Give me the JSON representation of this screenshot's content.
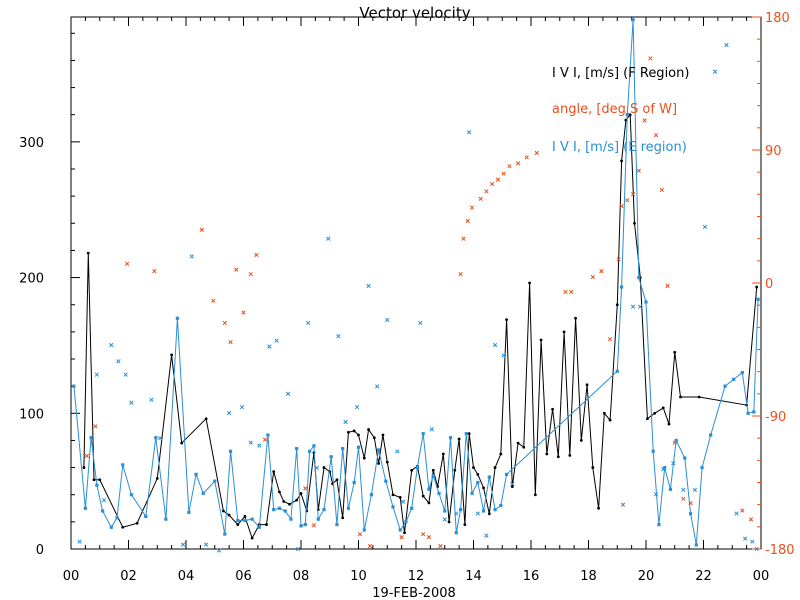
{
  "chart_data": {
    "type": "line",
    "title": "Vector velocity",
    "xlabel": "19-FEB-2008",
    "x_unit": "hours UT",
    "xlim": [
      0,
      24
    ],
    "x_ticks": [
      "00",
      "02",
      "04",
      "06",
      "08",
      "10",
      "12",
      "14",
      "16",
      "18",
      "20",
      "22",
      "00"
    ],
    "x_tick_values": [
      0,
      2,
      4,
      6,
      8,
      10,
      12,
      14,
      16,
      18,
      20,
      22,
      24
    ],
    "ylim": [
      0,
      392
    ],
    "y_ticks": [
      "0",
      "100",
      "200",
      "300"
    ],
    "y_tick_values": [
      0,
      100,
      200,
      300
    ],
    "y2lim": [
      -180,
      180
    ],
    "y2_ticks": [
      "-180",
      "-90",
      "0",
      "90",
      "180"
    ],
    "y2_tick_values": [
      -180,
      -90,
      0,
      90,
      180
    ],
    "colors": {
      "axis": "#000000",
      "f_region": "#000000",
      "angle": "#e8501e",
      "e_region": "#2a8fd6"
    },
    "legend": [
      {
        "label": "I V I, [m/s] (F Region)",
        "color": "#000000"
      },
      {
        "label": "angle, [deg S of W]",
        "color": "#e8501e"
      },
      {
        "label": "I V I, [m/s] (E region)",
        "color": "#2a8fd6"
      }
    ],
    "series": [
      {
        "name": "I V I, [m/s] (F Region)",
        "axis": "left",
        "style": "line-with-dots",
        "x": [
          0.45,
          0.6,
          0.8,
          1.0,
          1.8,
          2.3,
          3.0,
          3.5,
          3.85,
          4.7,
          5.3,
          5.5,
          5.8,
          6.05,
          6.3,
          6.55,
          6.8,
          7.05,
          7.25,
          7.4,
          7.6,
          7.85,
          8.0,
          8.2,
          8.45,
          8.6,
          8.8,
          9.0,
          9.1,
          9.25,
          9.45,
          9.65,
          9.85,
          10.0,
          10.2,
          10.35,
          10.55,
          10.7,
          10.85,
          11.0,
          11.2,
          11.45,
          11.6,
          11.85,
          12.05,
          12.25,
          12.45,
          12.6,
          12.75,
          12.95,
          13.15,
          13.35,
          13.5,
          13.7,
          13.85,
          14.0,
          14.15,
          14.35,
          14.55,
          14.75,
          14.95,
          15.15,
          15.35,
          15.55,
          15.75,
          15.95,
          16.15,
          16.35,
          16.55,
          16.75,
          16.95,
          17.15,
          17.35,
          17.55,
          17.75,
          17.95,
          18.15,
          18.35,
          18.55,
          18.75,
          19.0,
          19.15,
          19.3,
          19.45,
          19.6,
          19.8,
          20.05,
          20.3,
          20.6,
          20.8,
          21.0,
          21.2,
          21.85,
          23.5,
          23.85
        ],
        "values": [
          60,
          218,
          51,
          51,
          16,
          19,
          52,
          143,
          78,
          96,
          28,
          25,
          18,
          24,
          8,
          18,
          18,
          57,
          42,
          35,
          33,
          36,
          41,
          28,
          71,
          29,
          60,
          57,
          48,
          51,
          23,
          86,
          87,
          84,
          67,
          88,
          82,
          63,
          84,
          64,
          40,
          38,
          12,
          58,
          61,
          39,
          34,
          58,
          46,
          70,
          20,
          58,
          81,
          18,
          85,
          60,
          55,
          45,
          26,
          60,
          70,
          169,
          46,
          78,
          75,
          196,
          40,
          154,
          70,
          103,
          68,
          160,
          69,
          170,
          80,
          121,
          60,
          30,
          100,
          95,
          180,
          286,
          316,
          320,
          240,
          200,
          96,
          100,
          104,
          92,
          145,
          112,
          112,
          106,
          193
        ]
      },
      {
        "name": "angle, [deg S of W]",
        "axis": "right",
        "style": "markers-x",
        "x": [
          0.55,
          0.85,
          1.95,
          2.9,
          4.55,
          4.95,
          5.35,
          5.55,
          5.75,
          6.0,
          6.25,
          6.45,
          6.75,
          8.15,
          8.45,
          10.05,
          10.4,
          11.5,
          12.25,
          12.45,
          12.85,
          13.55,
          13.65,
          13.8,
          13.95,
          14.25,
          14.45,
          14.65,
          14.85,
          15.05,
          15.25,
          15.55,
          15.85,
          16.2,
          17.2,
          17.4,
          18.15,
          18.45,
          18.75,
          19.05,
          19.15,
          19.35,
          19.55,
          19.75,
          19.95,
          20.15,
          20.35,
          20.55,
          20.75,
          21.0,
          21.3,
          21.55,
          23.35,
          23.65
        ],
        "values": [
          -117,
          -97,
          13,
          8,
          36,
          -12,
          -27,
          -40,
          9,
          -20,
          6,
          19,
          -106,
          -139,
          -164,
          -170,
          -178,
          -172,
          -170,
          -172,
          -178,
          6,
          30,
          42,
          51,
          57,
          62,
          67,
          70,
          74,
          79,
          81,
          85,
          88,
          -6,
          -6,
          4,
          8,
          -38,
          16,
          52,
          56,
          60,
          76,
          110,
          152,
          100,
          63,
          -2,
          -108,
          -146,
          -149,
          -154,
          -160
        ]
      },
      {
        "name": "I V I, [m/s] (E region)",
        "axis": "left",
        "style": "line-with-squares",
        "x": [
          0.1,
          0.5,
          0.7,
          0.9,
          1.1,
          1.4,
          1.6,
          1.8,
          2.1,
          2.6,
          2.95,
          3.3,
          3.7,
          4.1,
          4.35,
          4.6,
          5.0,
          5.35,
          5.55,
          5.8,
          6.05,
          6.3,
          6.55,
          6.85,
          7.05,
          7.25,
          7.45,
          7.65,
          7.85,
          8.0,
          8.15,
          8.3,
          8.45,
          8.6,
          8.8,
          9.05,
          9.25,
          9.45,
          9.65,
          9.85,
          10.0,
          10.2,
          10.45,
          10.7,
          10.95,
          11.2,
          11.45,
          11.65,
          11.85,
          12.05,
          12.25,
          12.45,
          12.6,
          12.8,
          13.0,
          13.2,
          13.4,
          13.55,
          13.75,
          13.95,
          14.15,
          14.35,
          14.55,
          14.75,
          14.95,
          15.15,
          19.0,
          19.15,
          19.35,
          19.55,
          19.75,
          20.0,
          20.25,
          20.45,
          20.65,
          20.85,
          21.05,
          21.35,
          21.55,
          21.75,
          21.95,
          22.25,
          22.75,
          23.05,
          23.35,
          23.55,
          23.75,
          23.9
        ],
        "values": [
          120,
          30,
          82,
          47,
          28,
          16,
          23,
          62,
          40,
          24,
          82,
          22,
          170,
          27,
          55,
          41,
          50,
          11,
          72,
          21,
          21,
          22,
          16,
          84,
          29,
          30,
          28,
          22,
          74,
          17,
          18,
          72,
          76,
          22,
          29,
          68,
          18,
          74,
          30,
          49,
          75,
          14,
          40,
          73,
          50,
          31,
          14,
          20,
          30,
          60,
          85,
          44,
          54,
          41,
          28,
          82,
          12,
          29,
          85,
          41,
          49,
          28,
          53,
          29,
          32,
          55,
          131,
          193,
          320,
          390,
          200,
          182,
          72,
          18,
          60,
          44,
          80,
          67,
          26,
          3,
          60,
          84,
          120,
          125,
          130,
          100,
          101,
          184
        ]
      },
      {
        "name": "",
        "axis": "right",
        "style": "markers-x",
        "color": "#2a8fd6",
        "x": [
          0.3,
          0.9,
          1.15,
          1.4,
          1.65,
          1.9,
          2.1,
          2.8,
          3.1,
          3.9,
          4.2,
          4.7,
          5.15,
          5.5,
          5.95,
          6.25,
          6.55,
          6.9,
          7.15,
          7.55,
          7.9,
          8.25,
          8.55,
          8.95,
          9.3,
          9.55,
          9.95,
          10.35,
          10.65,
          11.0,
          11.35,
          11.55,
          12.15,
          12.55,
          13.0,
          13.4,
          13.85,
          14.15,
          14.45,
          14.75,
          15.05,
          15.35,
          19.2,
          19.55,
          19.8,
          20.35,
          20.6,
          20.95,
          21.3,
          21.7,
          22.05,
          22.4,
          22.8,
          23.15,
          23.45,
          23.7,
          23.85
        ],
        "values": [
          -175,
          -62,
          -147,
          -42,
          -53,
          -62,
          -81,
          -79,
          -105,
          -177,
          18,
          -177,
          -181,
          -88,
          -84,
          -108,
          -110,
          -43,
          -39,
          -75,
          -180,
          -27,
          -125,
          30,
          -36,
          -94,
          -84,
          -2,
          -70,
          -25,
          -114,
          -148,
          -27,
          -99,
          -160,
          -156,
          102,
          -156,
          -171,
          -42,
          -49,
          -136,
          -150,
          -16,
          -16,
          -143,
          -126,
          -122,
          -140,
          -140,
          38,
          143,
          161,
          -156,
          -173,
          -175,
          -180
        ]
      }
    ]
  }
}
